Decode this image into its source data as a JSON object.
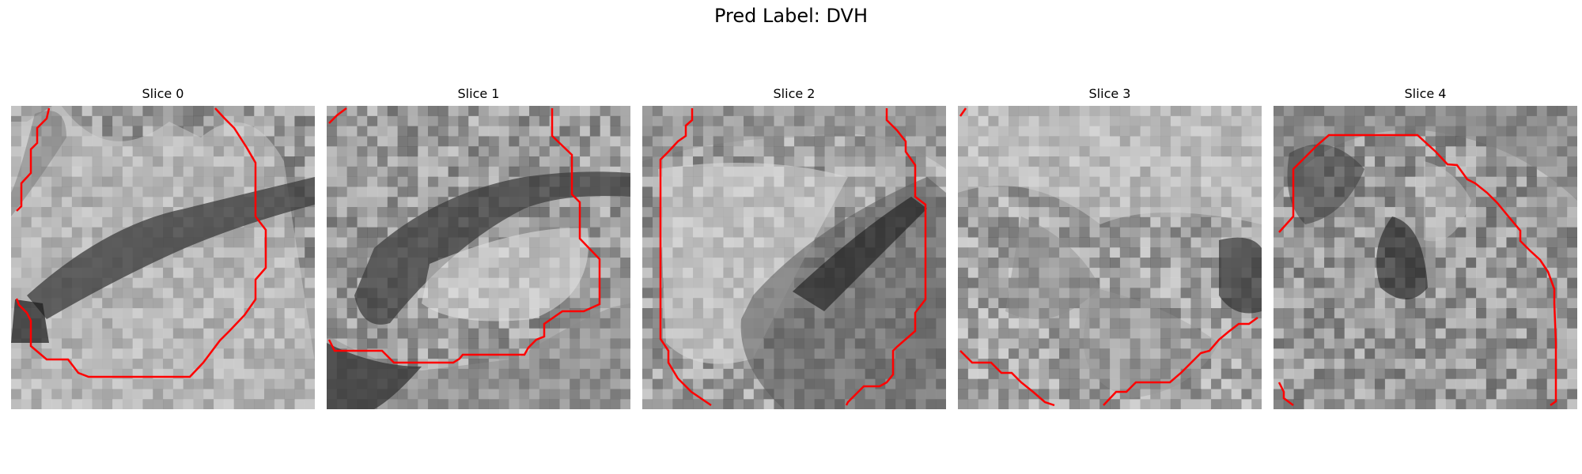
{
  "figure": {
    "title": "Pred Label: DVH"
  },
  "slices": [
    {
      "title": "Slice 0"
    },
    {
      "title": "Slice 1"
    },
    {
      "title": "Slice 2"
    },
    {
      "title": "Slice 3"
    },
    {
      "title": "Slice 4"
    }
  ],
  "colors": {
    "contour": "#ff0000"
  }
}
